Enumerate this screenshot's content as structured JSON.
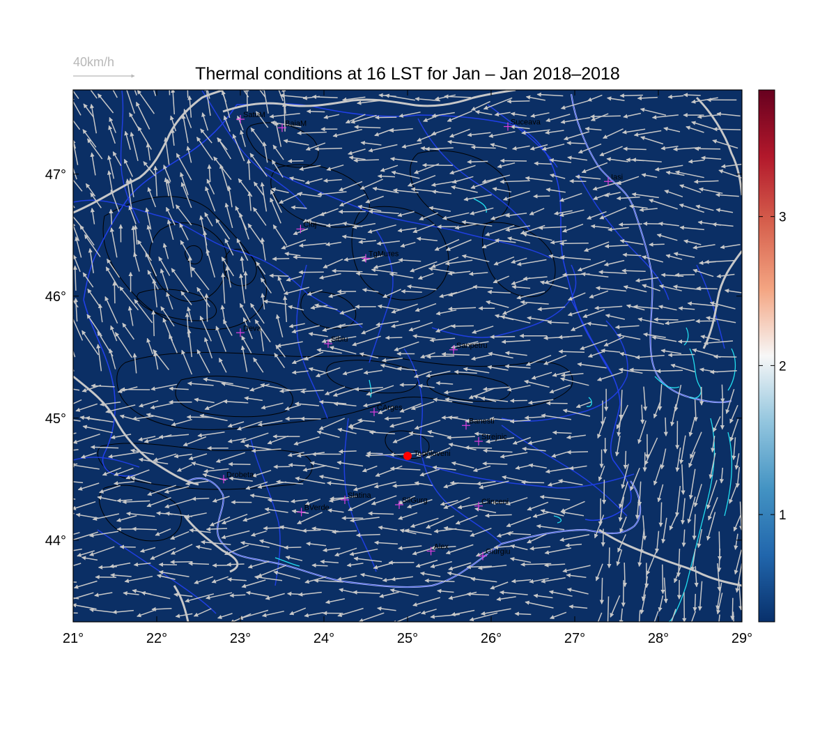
{
  "title": "Thermal conditions at 16 LST for Jan – Jan  2018–2018",
  "wind_scale": {
    "label": "40km/h"
  },
  "map": {
    "lon_range": [
      21,
      29
    ],
    "lat_range": [
      43.33,
      47.69
    ],
    "lon_ticks": [
      "21°",
      "22°",
      "23°",
      "24°",
      "25°",
      "26°",
      "27°",
      "28°",
      "29°"
    ],
    "lat_ticks": [
      "44°",
      "45°",
      "46°",
      "47°"
    ],
    "background_color": "#0b2f65",
    "marker": {
      "label": "Topoloveni",
      "lon": 25.0,
      "lat": 44.69,
      "color": "#ff0000"
    },
    "stations": [
      {
        "label": "SatuM",
        "lon": 23.0,
        "lat": 47.45
      },
      {
        "label": "BaiaM",
        "lon": 23.5,
        "lat": 47.38
      },
      {
        "label": "Suceava",
        "lon": 26.2,
        "lat": 47.39
      },
      {
        "label": "Iasi",
        "lon": 27.4,
        "lat": 46.94
      },
      {
        "label": "Cluj",
        "lon": 23.72,
        "lat": 46.55
      },
      {
        "label": "TgMures",
        "lon": 24.5,
        "lat": 46.31
      },
      {
        "label": "Deva",
        "lon": 23.0,
        "lat": 45.7
      },
      {
        "label": "Sibiu",
        "lon": 24.05,
        "lat": 45.61
      },
      {
        "label": "Sanpetru",
        "lon": 25.55,
        "lat": 45.56
      },
      {
        "label": "CArges",
        "lon": 24.6,
        "lat": 45.05
      },
      {
        "label": "Banesti",
        "lon": 25.7,
        "lat": 44.94
      },
      {
        "label": "Strejnic",
        "lon": 25.85,
        "lat": 44.81
      },
      {
        "label": "Drobeta",
        "lon": 22.8,
        "lat": 44.5
      },
      {
        "label": "Slatina",
        "lon": 24.25,
        "lat": 44.33
      },
      {
        "label": "SilGurg",
        "lon": 24.9,
        "lat": 44.29
      },
      {
        "label": "Clinceni",
        "lon": 25.85,
        "lat": 44.28
      },
      {
        "label": "BVerde",
        "lon": 23.73,
        "lat": 44.23
      },
      {
        "label": "Alex",
        "lon": 25.28,
        "lat": 43.91
      },
      {
        "label": "Giurgiu",
        "lon": 25.9,
        "lat": 43.87
      }
    ]
  },
  "colorbar": {
    "ticks": [
      "1",
      "2",
      "3"
    ],
    "tick_values": [
      1,
      2,
      3
    ],
    "range": [
      0.28,
      3.85
    ],
    "colors": [
      "#08306b",
      "#2166ac",
      "#4393c3",
      "#92c5de",
      "#f7f7f7",
      "#f4a582",
      "#d6604d",
      "#b2182b",
      "#67001f"
    ]
  }
}
